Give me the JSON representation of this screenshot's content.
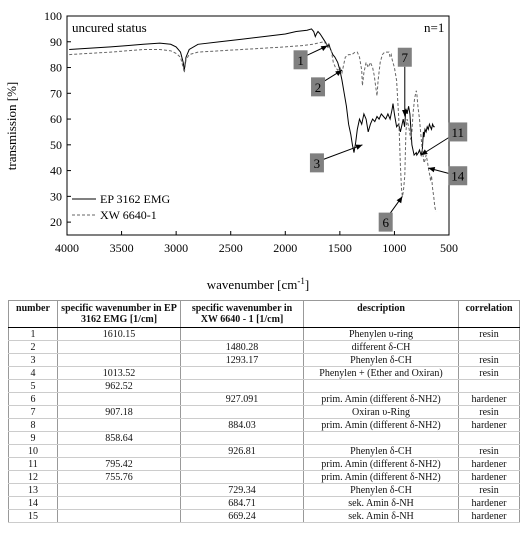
{
  "chart_data": {
    "type": "line",
    "annotations": {
      "status": "uncured status",
      "n": "n=1"
    },
    "xlabel": "wavenumber [cm",
    "xlabel_sup": "-1",
    "xlabel_end": "]",
    "ylabel": "transmission [%]",
    "xlim": [
      4000,
      500
    ],
    "ylim": [
      15,
      100
    ],
    "x_ticks": [
      4000,
      3500,
      3000,
      2500,
      2000,
      1500,
      1000,
      500
    ],
    "y_ticks": [
      20,
      30,
      40,
      50,
      60,
      70,
      80,
      90,
      100
    ],
    "legend_position": "bottom-left",
    "series": [
      {
        "name": "EP 3162 EMG",
        "style": "solid",
        "color": "#000000",
        "points": [
          [
            3980,
            87
          ],
          [
            3800,
            87.5
          ],
          [
            3600,
            88
          ],
          [
            3450,
            88.5
          ],
          [
            3300,
            89
          ],
          [
            3150,
            89.5
          ],
          [
            3050,
            89
          ],
          [
            3000,
            88
          ],
          [
            2960,
            86
          ],
          [
            2935,
            82
          ],
          [
            2925,
            79
          ],
          [
            2910,
            84
          ],
          [
            2880,
            87
          ],
          [
            2800,
            89
          ],
          [
            2600,
            90
          ],
          [
            2400,
            91
          ],
          [
            2200,
            92
          ],
          [
            2000,
            93
          ],
          [
            1900,
            94
          ],
          [
            1800,
            94.5
          ],
          [
            1760,
            95
          ],
          [
            1740,
            94
          ],
          [
            1725,
            92
          ],
          [
            1715,
            93
          ],
          [
            1700,
            94
          ],
          [
            1680,
            93
          ],
          [
            1650,
            91
          ],
          [
            1620,
            89
          ],
          [
            1610,
            88
          ],
          [
            1600,
            89
          ],
          [
            1585,
            87
          ],
          [
            1565,
            85
          ],
          [
            1545,
            84
          ],
          [
            1520,
            82
          ],
          [
            1500,
            79
          ],
          [
            1480,
            75
          ],
          [
            1460,
            70
          ],
          [
            1440,
            65
          ],
          [
            1420,
            58
          ],
          [
            1400,
            54
          ],
          [
            1385,
            50
          ],
          [
            1370,
            47
          ],
          [
            1355,
            51
          ],
          [
            1340,
            56
          ],
          [
            1320,
            60
          ],
          [
            1300,
            58
          ],
          [
            1280,
            62
          ],
          [
            1260,
            60
          ],
          [
            1240,
            55
          ],
          [
            1220,
            58
          ],
          [
            1200,
            60
          ],
          [
            1180,
            59
          ],
          [
            1160,
            61
          ],
          [
            1140,
            60
          ],
          [
            1120,
            62
          ],
          [
            1100,
            61
          ],
          [
            1080,
            60
          ],
          [
            1060,
            62
          ],
          [
            1040,
            60
          ],
          [
            1020,
            64
          ],
          [
            1013,
            66
          ],
          [
            1000,
            62
          ],
          [
            980,
            57
          ],
          [
            962,
            58
          ],
          [
            945,
            55
          ],
          [
            930,
            58
          ],
          [
            920,
            60
          ],
          [
            907,
            57
          ],
          [
            895,
            64
          ],
          [
            884,
            62
          ],
          [
            870,
            65
          ],
          [
            858,
            62
          ],
          [
            840,
            50
          ],
          [
            820,
            46
          ],
          [
            800,
            47
          ],
          [
            795,
            46
          ],
          [
            780,
            47
          ],
          [
            770,
            48
          ],
          [
            756,
            46
          ],
          [
            745,
            48
          ],
          [
            735,
            55
          ],
          [
            729,
            53
          ],
          [
            720,
            56
          ],
          [
            710,
            55
          ],
          [
            700,
            57
          ],
          [
            690,
            56
          ],
          [
            680,
            58
          ],
          [
            670,
            57
          ],
          [
            660,
            56
          ],
          [
            650,
            58
          ],
          [
            640,
            57
          ],
          [
            630,
            57
          ]
        ]
      },
      {
        "name": "XW 6640-1",
        "style": "dashed",
        "color": "#666666",
        "points": [
          [
            3980,
            85
          ],
          [
            3800,
            85.5
          ],
          [
            3600,
            86
          ],
          [
            3450,
            86.5
          ],
          [
            3300,
            87
          ],
          [
            3150,
            87
          ],
          [
            3050,
            86.5
          ],
          [
            3000,
            85.5
          ],
          [
            2960,
            84
          ],
          [
            2935,
            80
          ],
          [
            2925,
            78
          ],
          [
            2910,
            83
          ],
          [
            2880,
            85
          ],
          [
            2800,
            86
          ],
          [
            2600,
            86.5
          ],
          [
            2400,
            87
          ],
          [
            2200,
            87.5
          ],
          [
            2000,
            88
          ],
          [
            1850,
            88.5
          ],
          [
            1750,
            89
          ],
          [
            1700,
            89.5
          ],
          [
            1650,
            90
          ],
          [
            1620,
            89
          ],
          [
            1600,
            88
          ],
          [
            1580,
            87
          ],
          [
            1560,
            82
          ],
          [
            1540,
            80
          ],
          [
            1520,
            79
          ],
          [
            1500,
            80
          ],
          [
            1480,
            78
          ],
          [
            1470,
            80
          ],
          [
            1450,
            84
          ],
          [
            1420,
            85
          ],
          [
            1390,
            85
          ],
          [
            1360,
            86
          ],
          [
            1340,
            86
          ],
          [
            1320,
            84
          ],
          [
            1300,
            79
          ],
          [
            1293,
            73
          ],
          [
            1280,
            78
          ],
          [
            1260,
            82
          ],
          [
            1240,
            80
          ],
          [
            1220,
            82
          ],
          [
            1200,
            80
          ],
          [
            1185,
            77
          ],
          [
            1170,
            72
          ],
          [
            1160,
            69
          ],
          [
            1150,
            75
          ],
          [
            1130,
            82
          ],
          [
            1110,
            85
          ],
          [
            1090,
            86
          ],
          [
            1070,
            86
          ],
          [
            1050,
            86
          ],
          [
            1040,
            84
          ],
          [
            1030,
            85
          ],
          [
            1020,
            83
          ],
          [
            1000,
            80
          ],
          [
            980,
            75
          ],
          [
            960,
            60
          ],
          [
            945,
            42
          ],
          [
            935,
            33
          ],
          [
            927,
            30
          ],
          [
            918,
            32
          ],
          [
            905,
            38
          ],
          [
            895,
            55
          ],
          [
            884,
            60
          ],
          [
            875,
            58
          ],
          [
            865,
            56
          ],
          [
            850,
            52
          ],
          [
            840,
            55
          ],
          [
            830,
            62
          ],
          [
            815,
            68
          ],
          [
            800,
            71
          ],
          [
            795,
            70
          ],
          [
            785,
            65
          ],
          [
            770,
            60
          ],
          [
            760,
            55
          ],
          [
            745,
            48
          ],
          [
            735,
            45
          ],
          [
            729,
            43
          ],
          [
            720,
            44
          ],
          [
            710,
            46
          ],
          [
            700,
            44
          ],
          [
            685,
            40
          ],
          [
            675,
            38
          ],
          [
            669,
            36
          ],
          [
            660,
            38
          ],
          [
            650,
            33
          ],
          [
            640,
            30
          ],
          [
            630,
            26
          ],
          [
            620,
            24
          ]
        ]
      }
    ],
    "markers": [
      {
        "label": "1",
        "box": [
          1860,
          83
        ],
        "tip": [
          1612,
          88.5
        ]
      },
      {
        "label": "2",
        "box": [
          1700,
          72.5
        ],
        "tip": [
          1480,
          79
        ]
      },
      {
        "label": "3",
        "box": [
          1710,
          43
        ],
        "tip": [
          1293,
          50
        ]
      },
      {
        "label": "6",
        "box": [
          1080,
          20
        ],
        "tip": [
          927,
          30
        ]
      },
      {
        "label": "7",
        "box": [
          905,
          84
        ],
        "tip": [
          905,
          61
        ]
      },
      {
        "label": "11",
        "box": [
          420,
          55
        ],
        "tip": [
          758,
          46
        ]
      },
      {
        "label": "14",
        "box": [
          420,
          38
        ],
        "tip": [
          690,
          41
        ]
      }
    ]
  },
  "table": {
    "headers": {
      "number": "number",
      "ep": "specific wavenumber in EP 3162 EMG [1/cm]",
      "xw": "specific wavenumber in XW 6640 - 1 [1/cm]",
      "description": "description",
      "correlation": "correlation"
    },
    "rows": [
      {
        "number": "1",
        "ep": "1610.15",
        "xw": "",
        "description": "Phenylen υ-ring",
        "correlation": "resin"
      },
      {
        "number": "2",
        "ep": "",
        "xw": "1480.28",
        "description": "different δ-CH",
        "correlation": ""
      },
      {
        "number": "3",
        "ep": "",
        "xw": "1293.17",
        "description": "Phenylen δ-CH",
        "correlation": "resin"
      },
      {
        "number": "4",
        "ep": "1013.52",
        "xw": "",
        "description": "Phenylen + (Ether and Oxiran)",
        "correlation": "resin"
      },
      {
        "number": "5",
        "ep": "962.52",
        "xw": "",
        "description": "",
        "correlation": ""
      },
      {
        "number": "6",
        "ep": "",
        "xw": "927.091",
        "description": "prim. Amin (different δ-NH2)",
        "correlation": "hardener"
      },
      {
        "number": "7",
        "ep": "907.18",
        "xw": "",
        "description": "Oxiran υ-Ring",
        "correlation": "resin"
      },
      {
        "number": "8",
        "ep": "",
        "xw": "884.03",
        "description": "prim. Amin (different δ-NH2)",
        "correlation": "hardener"
      },
      {
        "number": "9",
        "ep": "858.64",
        "xw": "",
        "description": "",
        "correlation": ""
      },
      {
        "number": "10",
        "ep": "",
        "xw": "926.81",
        "description": "Phenylen δ-CH",
        "correlation": "resin"
      },
      {
        "number": "11",
        "ep": "795.42",
        "xw": "",
        "description": "prim. Amin (different δ-NH2)",
        "correlation": "hardener"
      },
      {
        "number": "12",
        "ep": "755.76",
        "xw": "",
        "description": "prim. Amin (different δ-NH2)",
        "correlation": "hardener"
      },
      {
        "number": "13",
        "ep": "",
        "xw": "729.34",
        "description": "Phenylen δ-CH",
        "correlation": "resin"
      },
      {
        "number": "14",
        "ep": "",
        "xw": "684.71",
        "description": "sek. Amin δ-NH",
        "correlation": "hardener"
      },
      {
        "number": "15",
        "ep": "",
        "xw": "669.24",
        "description": "sek. Amin δ-NH",
        "correlation": "hardener"
      }
    ]
  }
}
